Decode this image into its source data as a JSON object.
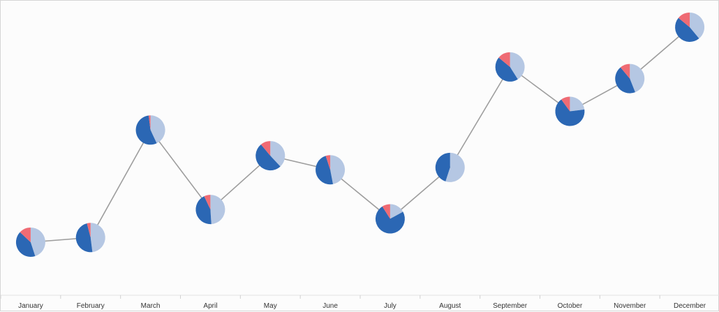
{
  "chart_data": {
    "type": "line",
    "categories": [
      "January",
      "February",
      "March",
      "April",
      "May",
      "June",
      "July",
      "August",
      "September",
      "October",
      "November",
      "December"
    ],
    "series": [
      {
        "values": [
          12,
          14,
          60,
          26,
          49,
          43,
          22,
          44,
          87,
          68,
          82,
          104
        ]
      }
    ],
    "point_markers": {
      "type": "pie",
      "slices": [
        [
          0.45,
          0.42,
          0.13
        ],
        [
          0.48,
          0.48,
          0.04
        ],
        [
          0.43,
          0.55,
          0.02
        ],
        [
          0.49,
          0.44,
          0.07
        ],
        [
          0.38,
          0.51,
          0.11
        ],
        [
          0.47,
          0.48,
          0.05
        ],
        [
          0.17,
          0.74,
          0.09
        ],
        [
          0.55,
          0.45,
          0.0
        ],
        [
          0.41,
          0.45,
          0.14
        ],
        [
          0.23,
          0.67,
          0.1
        ],
        [
          0.44,
          0.45,
          0.11
        ],
        [
          0.39,
          0.47,
          0.14
        ]
      ],
      "colors": [
        "#b5c7e3",
        "#2b67b4",
        "#ef6b74"
      ]
    },
    "ylim": [
      0,
      115
    ],
    "grid": false,
    "legend": "none",
    "line_color": "#9e9e9e"
  }
}
